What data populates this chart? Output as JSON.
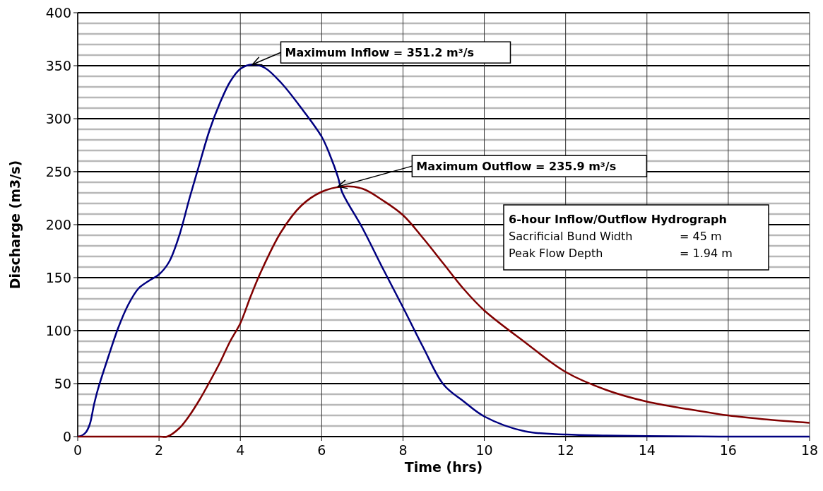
{
  "chart_data": {
    "type": "line",
    "xlabel": "Time (hrs)",
    "ylabel": "Discharge (m3/s)",
    "xlim": [
      0,
      18
    ],
    "xticks": [
      0,
      2,
      4,
      6,
      8,
      10,
      12,
      14,
      16,
      18
    ],
    "ylim": [
      0,
      400
    ],
    "yticks": [
      0,
      {
        "value": 10,
        "label": null
      },
      {
        "value": 20,
        "label": null
      },
      {
        "value": 30,
        "label": null
      },
      {
        "value": 40,
        "label": null
      },
      50,
      {
        "value": 60,
        "label": null
      },
      {
        "value": 70,
        "label": null
      },
      {
        "value": 80,
        "label": null
      },
      {
        "value": 90,
        "label": null
      },
      100,
      {
        "value": 110,
        "label": null
      },
      {
        "value": 120,
        "label": null
      },
      {
        "value": 130,
        "label": null
      },
      {
        "value": 140,
        "label": null
      },
      150,
      {
        "value": 160,
        "label": null
      },
      {
        "value": 170,
        "label": null
      },
      {
        "value": 180,
        "label": null
      },
      {
        "value": 190,
        "label": null
      },
      200,
      {
        "value": 210,
        "label": null
      },
      {
        "value": 220,
        "label": null
      },
      {
        "value": 230,
        "label": null
      },
      {
        "value": 240,
        "label": null
      },
      250,
      {
        "value": 260,
        "label": null
      },
      {
        "value": 270,
        "label": null
      },
      {
        "value": 280,
        "label": null
      },
      {
        "value": 290,
        "label": null
      },
      300,
      {
        "value": 310,
        "label": null
      },
      {
        "value": 320,
        "label": null
      },
      {
        "value": 330,
        "label": null
      },
      {
        "value": 340,
        "label": null
      },
      350,
      {
        "value": 360,
        "label": null
      },
      {
        "value": 370,
        "label": null
      },
      {
        "value": 380,
        "label": null
      },
      {
        "value": 390,
        "label": null
      },
      400
    ],
    "grid": true,
    "marker": "none",
    "line_style": "solid",
    "series": [
      {
        "color": "#000080",
        "x": [
          0,
          0.1,
          0.2,
          0.3,
          0.4,
          0.5,
          0.75,
          1,
          1.25,
          1.5,
          1.75,
          2,
          2.25,
          2.5,
          2.75,
          3,
          3.25,
          3.5,
          3.75,
          4,
          4.3,
          4.6,
          5,
          5.5,
          6,
          6.2,
          6.4,
          6.5,
          7,
          7.5,
          8,
          8.5,
          9,
          9.5,
          10,
          11,
          12,
          13,
          14,
          16,
          18
        ],
        "values": [
          0,
          1,
          4,
          12,
          30,
          45,
          75,
          103,
          125,
          140,
          147,
          153,
          165,
          190,
          225,
          258,
          290,
          315,
          335,
          347,
          351.2,
          348,
          334,
          310,
          283,
          266,
          245,
          231,
          197,
          159,
          122,
          84,
          49,
          33,
          19,
          5,
          2,
          1,
          0.5,
          0,
          0
        ]
      },
      {
        "color": "#800000",
        "x": [
          0,
          1,
          2,
          2.2,
          2.5,
          2.75,
          3,
          3.25,
          3.5,
          3.75,
          4,
          4.25,
          4.5,
          5,
          5.5,
          6,
          6.5,
          7,
          7.5,
          8,
          8.5,
          9,
          9.5,
          10,
          11,
          12,
          13,
          14,
          15,
          16,
          17,
          18
        ],
        "values": [
          0,
          0,
          0,
          0,
          8,
          20,
          35,
          52,
          70,
          90,
          107,
          132,
          155,
          193,
          218,
          231,
          235.9,
          234,
          223,
          209,
          187,
          163,
          139,
          119,
          89,
          61,
          44,
          33,
          26,
          20,
          16,
          13
        ]
      }
    ],
    "annotations": [
      {
        "text": "Maximum Inflow = 351.2 m³/s",
        "x": 4.3,
        "y": 351.2
      },
      {
        "text": "Maximum Outflow = 235.9 m³/s",
        "x": 6.4,
        "y": 235.9
      },
      "6-hour Inflow/Outflow Hydrograph",
      "Sacrificial Bund Width\t= 45 m",
      "Peak Flow Depth\t= 1.94 m"
    ]
  }
}
